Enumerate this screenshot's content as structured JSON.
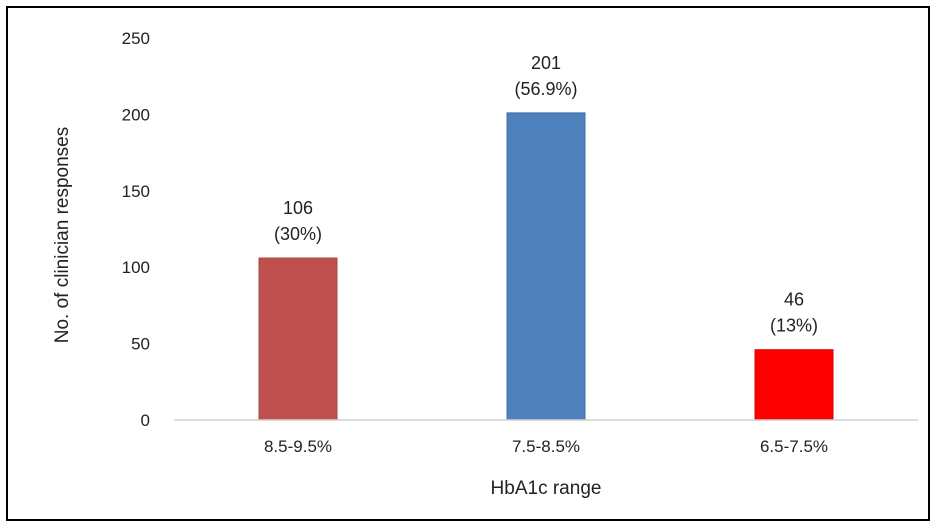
{
  "chart_data": {
    "type": "bar",
    "title": "",
    "xlabel": "HbA1c range",
    "ylabel": "No. of clinician responses",
    "ylim": [
      0,
      250
    ],
    "yticks": [
      0,
      50,
      100,
      150,
      200,
      250
    ],
    "grid": false,
    "legend": "none",
    "categories": [
      "8.5-9.5%",
      "7.5-8.5%",
      "6.5-7.5%"
    ],
    "values": [
      106,
      201,
      46
    ],
    "data_labels": [
      {
        "count": "106",
        "percent": "(30%)"
      },
      {
        "count": "201",
        "percent": "(56.9%)"
      },
      {
        "count": "46",
        "percent": "(13%)"
      }
    ],
    "bar_colors": [
      "#C0504D",
      "#4F81BD",
      "#FF0000"
    ],
    "bar_edge_colors": [
      "#A84543",
      "#3F6FA8",
      "#D90000"
    ]
  }
}
